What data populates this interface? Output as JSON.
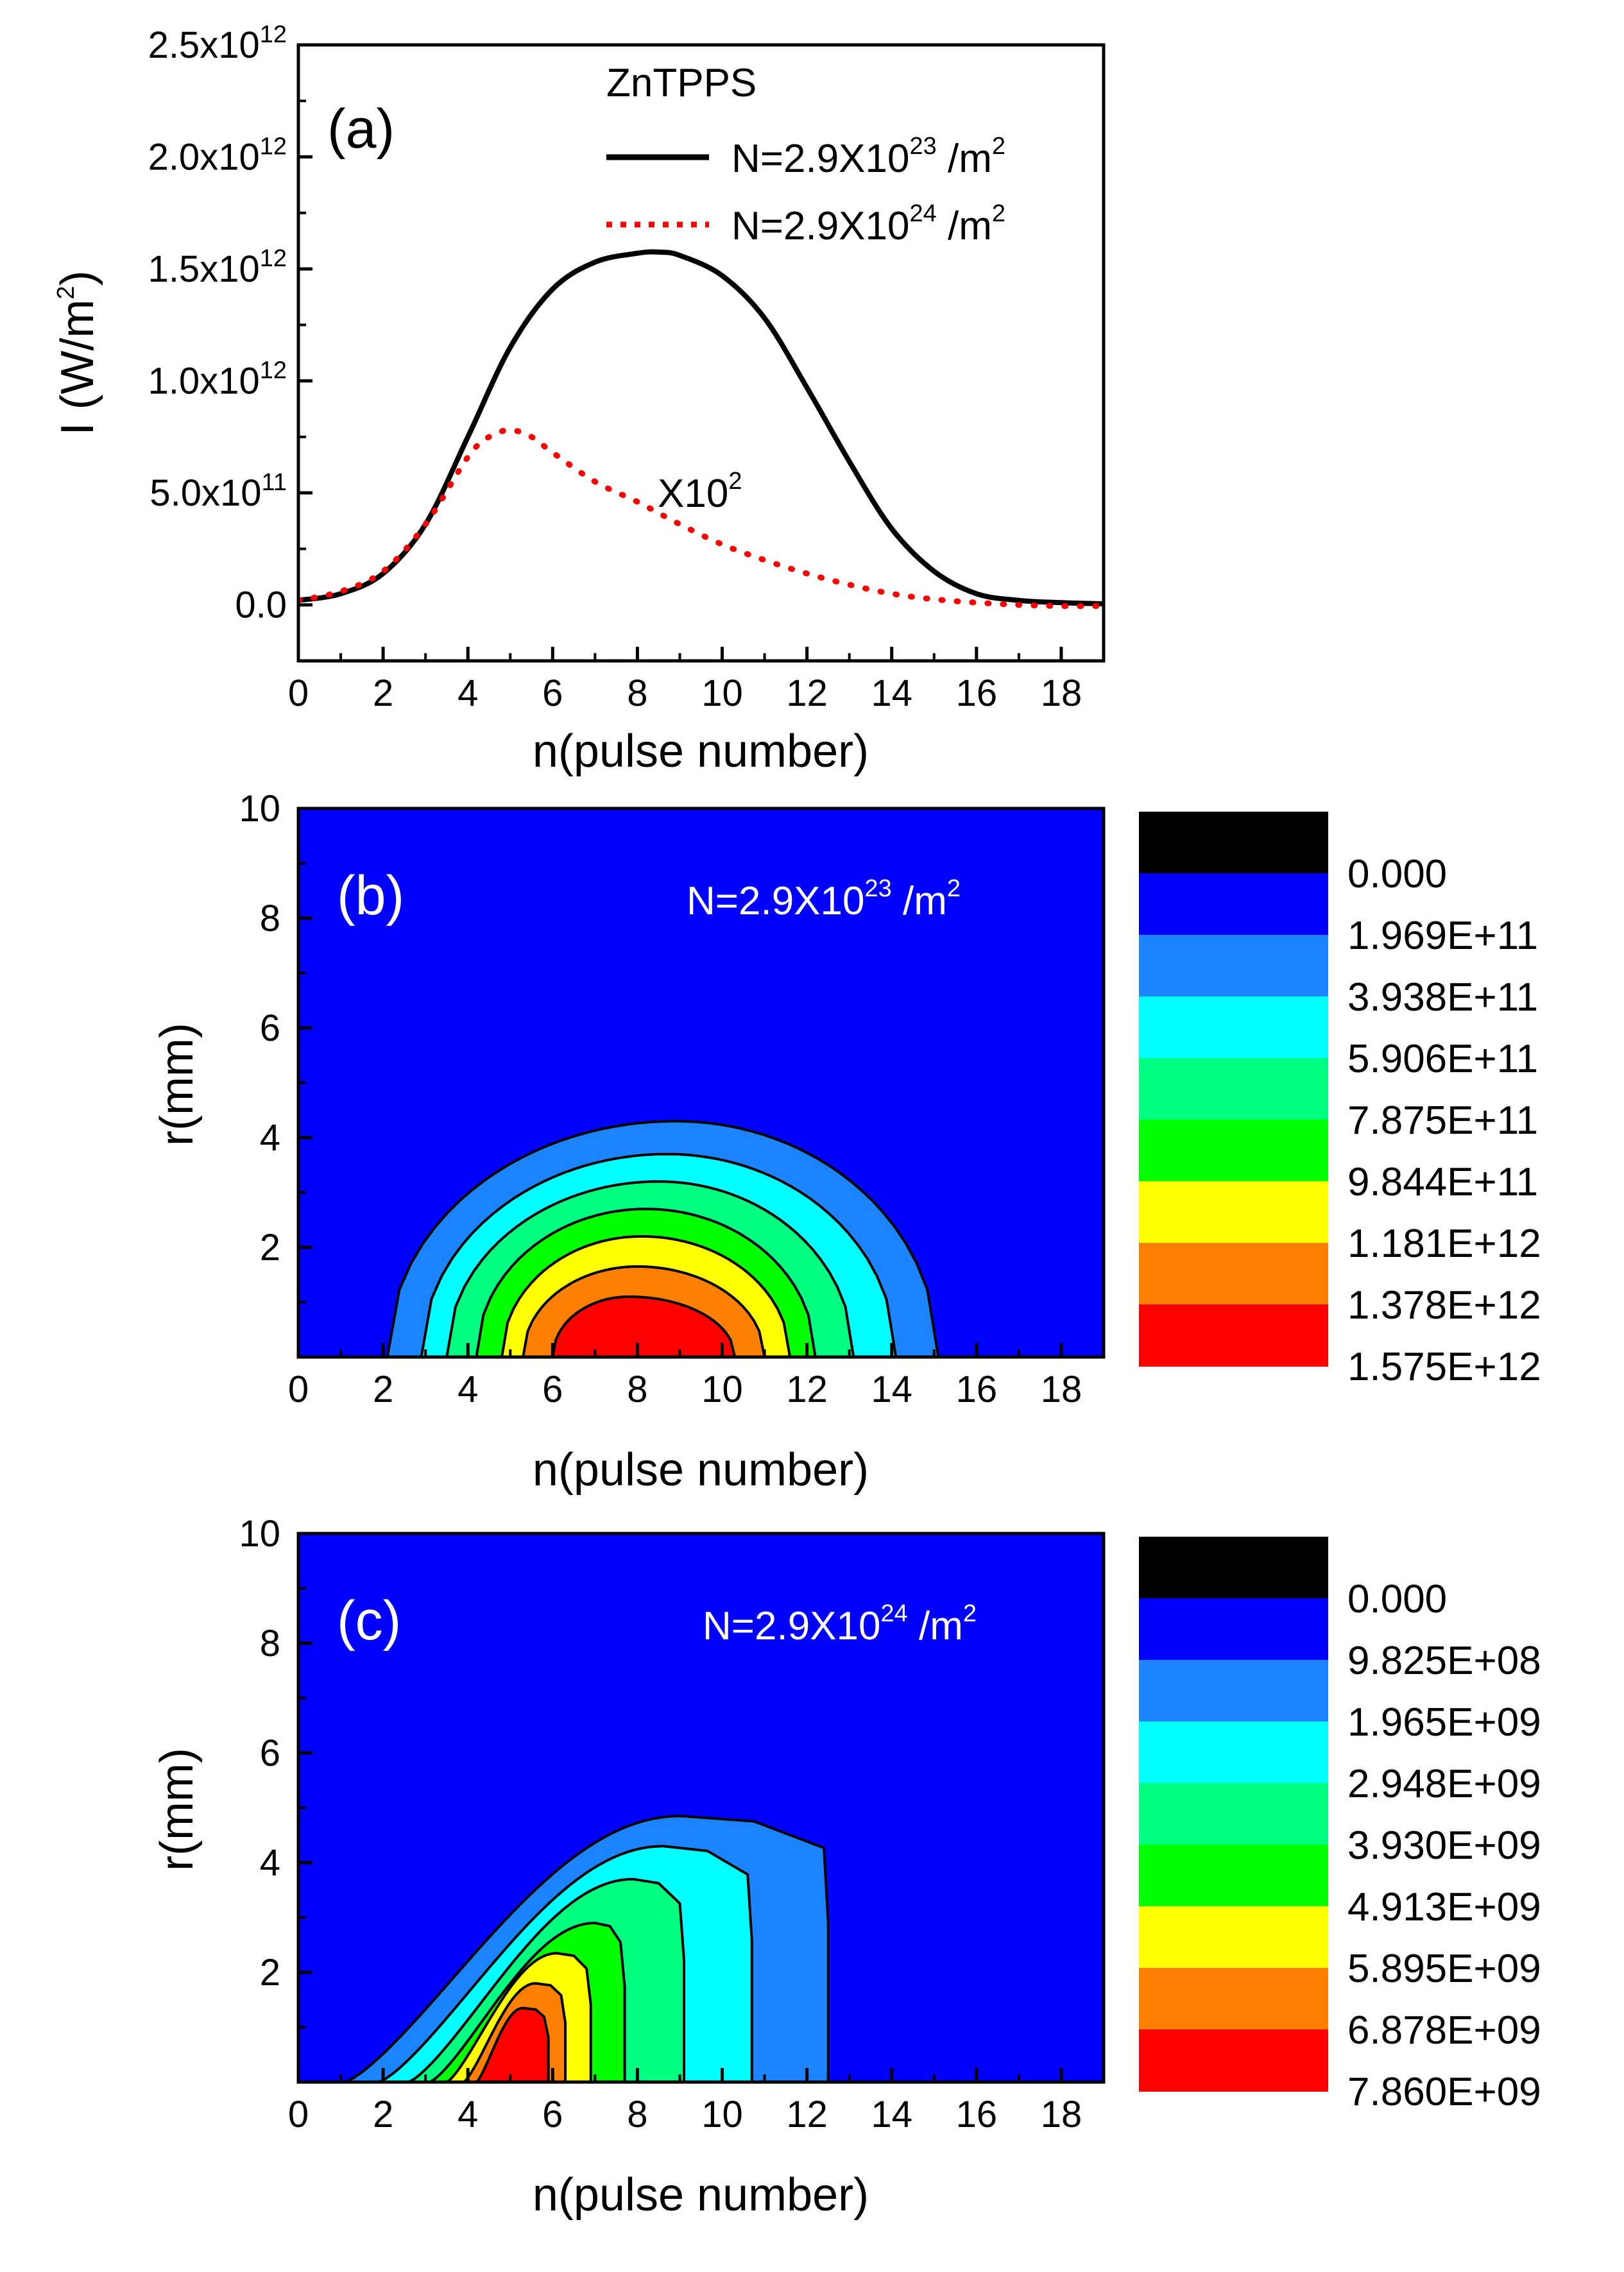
{
  "chart_data": [
    {
      "type": "line",
      "panel": "(a)",
      "title": "ZnTPPS",
      "xlabel": "n(pulse number)",
      "ylabel": "I (W/m²)",
      "ylabel_base": "I (W/m",
      "ylabel_sup": "2",
      "ylabel_tail": ")",
      "xlim": [
        0,
        19
      ],
      "ylim": [
        -250000000000.0,
        2500000000000.0
      ],
      "xticks": [
        0,
        2,
        4,
        6,
        8,
        10,
        12,
        14,
        16,
        18
      ],
      "ytick_values": [
        0,
        500000000000.0,
        1000000000000.0,
        1500000000000.0,
        2000000000000.0,
        2500000000000.0
      ],
      "ytick_labels": [
        {
          "base": "0.0",
          "exp": ""
        },
        {
          "base": "5.0x10",
          "exp": "11"
        },
        {
          "base": "1.0x10",
          "exp": "12"
        },
        {
          "base": "1.5x10",
          "exp": "12"
        },
        {
          "base": "2.0x10",
          "exp": "12"
        },
        {
          "base": "2.5x10",
          "exp": "12"
        }
      ],
      "annotation": {
        "base": "X10",
        "exp": "2",
        "x": 9.1,
        "y": 430000000000.0
      },
      "series": [
        {
          "name": "N=2.9X10^23 /m^2",
          "label_base": "N=2.9X10",
          "label_exp": "23",
          "label_tail": " /m",
          "label_tail_exp": "2",
          "style": "solid",
          "color": "#000000",
          "x": [
            0,
            1,
            2,
            3,
            4,
            5,
            6,
            7,
            8,
            8.5,
            9,
            10,
            11,
            12,
            13,
            14,
            15,
            16,
            17,
            18,
            19
          ],
          "y": [
            20000000000.0,
            50000000000.0,
            140000000000.0,
            360000000000.0,
            750000000000.0,
            1150000000000.0,
            1410000000000.0,
            1530000000000.0,
            1570000000000.0,
            1575000000000.0,
            1560000000000.0,
            1470000000000.0,
            1280000000000.0,
            970000000000.0,
            640000000000.0,
            340000000000.0,
            150000000000.0,
            50000000000.0,
            20000000000.0,
            10000000000.0,
            5000000000.0
          ]
        },
        {
          "name": "N=2.9X10^24 /m^2",
          "label_base": "N=2.9X10",
          "label_exp": "24",
          "label_tail": " /m",
          "label_tail_exp": "2",
          "style": "dotted",
          "color": "#ff0000",
          "x": [
            0,
            1,
            2,
            3,
            4,
            4.5,
            5,
            5.5,
            6,
            7,
            8,
            9,
            10,
            11,
            12,
            13,
            14,
            15,
            16,
            17,
            18,
            19
          ],
          "y": [
            20000000000.0,
            60000000000.0,
            150000000000.0,
            360000000000.0,
            660000000000.0,
            750000000000.0,
            780000000000.0,
            750000000000.0,
            680000000000.0,
            550000000000.0,
            460000000000.0,
            360000000000.0,
            270000000000.0,
            200000000000.0,
            140000000000.0,
            90000000000.0,
            50000000000.0,
            25000000000.0,
            10000000000.0,
            0,
            -5000000000.0,
            -5000000000.0
          ]
        }
      ]
    },
    {
      "type": "contour",
      "panel": "(b)",
      "annotation": {
        "base": "N=2.9X10",
        "exp": "23",
        "tail": " /m",
        "tail_exp": "2"
      },
      "xlabel": "n(pulse number)",
      "ylabel": "r(mm)",
      "xlim": [
        0,
        19
      ],
      "ylim": [
        0,
        10
      ],
      "xticks": [
        0,
        2,
        4,
        6,
        8,
        10,
        12,
        14,
        16,
        18
      ],
      "yticks": [
        2,
        4,
        6,
        8,
        10
      ],
      "background_color": "#0000ff",
      "level_colors": [
        "#000000",
        "#0000ff",
        "#1c84ff",
        "#00ffff",
        "#00ff80",
        "#00ff00",
        "#ffff00",
        "#ff8000",
        "#ff0000"
      ],
      "level_labels": [
        "0.000",
        "1.969E+11",
        "3.938E+11",
        "5.906E+11",
        "7.875E+11",
        "9.844E+11",
        "1.181E+12",
        "1.378E+12",
        "1.575E+12"
      ],
      "regions": [
        {
          "color": "#1c84ff",
          "x0": 2.1,
          "x1": 15.1,
          "peak_x": 8.9,
          "h": 4.3
        },
        {
          "color": "#00ffff",
          "x0": 2.9,
          "x1": 14.1,
          "peak_x": 8.7,
          "h": 3.7
        },
        {
          "color": "#00ff80",
          "x0": 3.5,
          "x1": 13.1,
          "peak_x": 8.5,
          "h": 3.2
        },
        {
          "color": "#00ff00",
          "x0": 4.2,
          "x1": 12.2,
          "peak_x": 8.2,
          "h": 2.7
        },
        {
          "color": "#ffff00",
          "x0": 4.8,
          "x1": 11.6,
          "peak_x": 8.1,
          "h": 2.2
        },
        {
          "color": "#ff8000",
          "x0": 5.3,
          "x1": 11.0,
          "peak_x": 8.0,
          "h": 1.65
        },
        {
          "color": "#ff0000",
          "x0": 6.0,
          "x1": 10.3,
          "peak_x": 7.8,
          "h": 1.1
        }
      ]
    },
    {
      "type": "contour",
      "panel": "(c)",
      "annotation": {
        "base": "N=2.9X10",
        "exp": "24",
        "tail": " /m",
        "tail_exp": "2"
      },
      "xlabel": "n(pulse number)",
      "ylabel": "r(mm)",
      "xlim": [
        0,
        19
      ],
      "ylim": [
        0,
        10
      ],
      "xticks": [
        0,
        2,
        4,
        6,
        8,
        10,
        12,
        14,
        16,
        18
      ],
      "yticks": [
        2,
        4,
        6,
        8,
        10
      ],
      "background_color": "#0000ff",
      "level_colors": [
        "#000000",
        "#0000ff",
        "#1c84ff",
        "#00ffff",
        "#00ff80",
        "#00ff00",
        "#ffff00",
        "#ff8000",
        "#ff0000"
      ],
      "level_labels": [
        "0.000",
        "9.825E+08",
        "1.965E+09",
        "2.948E+09",
        "3.930E+09",
        "4.913E+09",
        "5.895E+09",
        "6.878E+09",
        "7.860E+09"
      ],
      "regions": [
        {
          "color": "#1c84ff",
          "x0": 1.1,
          "x1": 12.5,
          "top_x": 9.0,
          "h": 4.85
        },
        {
          "color": "#00ffff",
          "x0": 1.9,
          "x1": 10.7,
          "top_x": 8.6,
          "h": 4.3
        },
        {
          "color": "#00ff80",
          "x0": 2.6,
          "x1": 9.1,
          "top_x": 7.9,
          "h": 3.7
        },
        {
          "color": "#00ff00",
          "x0": 3.1,
          "x1": 7.7,
          "top_x": 7.0,
          "h": 2.9
        },
        {
          "color": "#ffff00",
          "x0": 3.5,
          "x1": 6.9,
          "top_x": 6.1,
          "h": 2.35
        },
        {
          "color": "#ff8000",
          "x0": 3.9,
          "x1": 6.3,
          "top_x": 5.6,
          "h": 1.8
        },
        {
          "color": "#ff0000",
          "x0": 4.2,
          "x1": 5.9,
          "top_x": 5.3,
          "h": 1.35
        }
      ]
    }
  ]
}
